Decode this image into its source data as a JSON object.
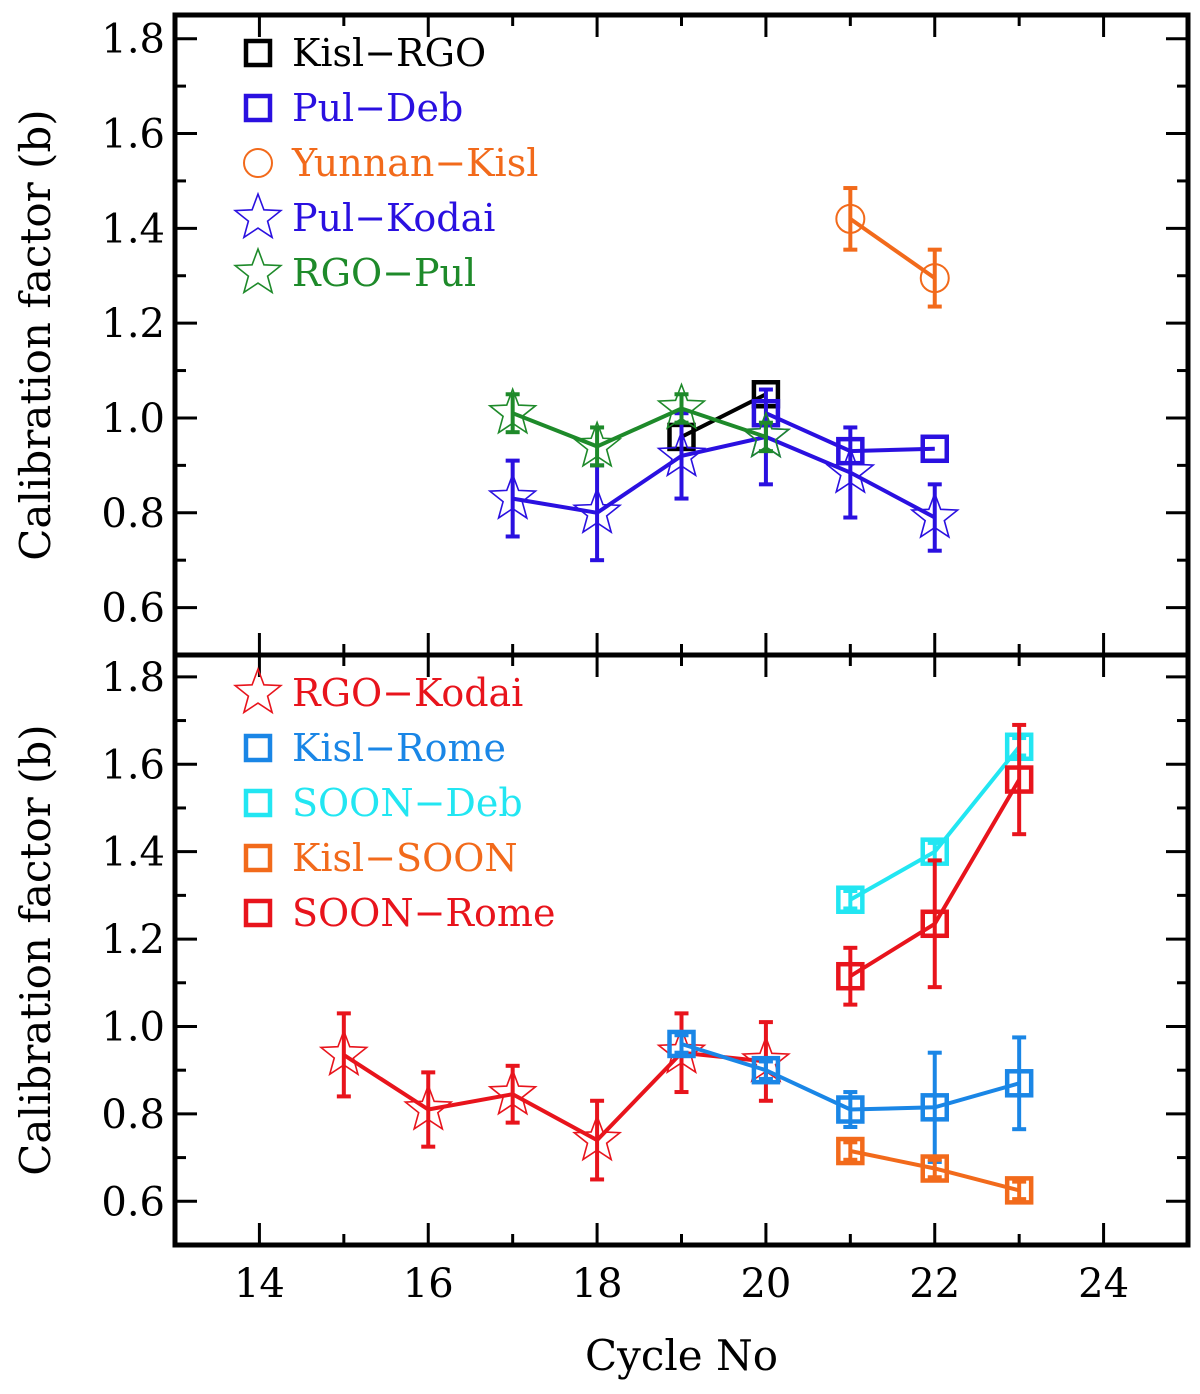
{
  "chart_data": [
    {
      "type": "scatter",
      "panel": "top",
      "ylabel": "Calibration factor (b)",
      "xlabel": "",
      "xlim": [
        13,
        25
      ],
      "ylim": [
        0.5,
        1.85
      ],
      "x_ticks": [
        14,
        16,
        18,
        20,
        22,
        24
      ],
      "y_ticks": [
        0.6,
        0.8,
        1.0,
        1.2,
        1.4,
        1.6,
        1.8
      ],
      "y_tick_labels": [
        "0.6",
        "0.8",
        "1.0",
        "1.2",
        "1.4",
        "1.6",
        "1.8"
      ],
      "legend_position": "top-left",
      "series": [
        {
          "name": "Kisl−RGO",
          "color": "#000000",
          "marker": "square",
          "x": [
            19,
            20
          ],
          "y": [
            0.96,
            1.05
          ],
          "yerr": [
            0.0,
            0.0
          ]
        },
        {
          "name": "Pul−Deb",
          "color": "#2a10e0",
          "marker": "square",
          "x": [
            20,
            21,
            22
          ],
          "y": [
            1.01,
            0.93,
            0.935
          ],
          "yerr": [
            0.0,
            0.0,
            0.0
          ]
        },
        {
          "name": "Yunnan−Kisl",
          "color": "#f26a1b",
          "marker": "circle",
          "x": [
            21,
            22
          ],
          "y": [
            1.42,
            1.295
          ],
          "yerr": [
            0.065,
            0.06
          ]
        },
        {
          "name": "Pul−Kodai",
          "color": "#2a10e0",
          "marker": "star",
          "x": [
            17,
            18,
            19,
            20,
            21,
            22
          ],
          "y": [
            0.83,
            0.8,
            0.92,
            0.96,
            0.885,
            0.79
          ],
          "yerr": [
            0.08,
            0.1,
            0.09,
            0.1,
            0.095,
            0.07
          ]
        },
        {
          "name": "RGO−Pul",
          "color": "#1e8a2a",
          "marker": "star",
          "x": [
            17,
            18,
            19,
            20
          ],
          "y": [
            1.01,
            0.94,
            1.02,
            0.96
          ],
          "yerr": [
            0.04,
            0.04,
            0.03,
            0.03
          ]
        }
      ]
    },
    {
      "type": "scatter",
      "panel": "bottom",
      "ylabel": "Calibration factor (b)",
      "xlabel": "Cycle No",
      "xlim": [
        13,
        25
      ],
      "ylim": [
        0.5,
        1.85
      ],
      "x_ticks": [
        14,
        16,
        18,
        20,
        22,
        24
      ],
      "x_tick_labels": [
        "14",
        "16",
        "18",
        "20",
        "22",
        "24"
      ],
      "y_ticks": [
        0.6,
        0.8,
        1.0,
        1.2,
        1.4,
        1.6,
        1.8
      ],
      "y_tick_labels": [
        "0.6",
        "0.8",
        "1.0",
        "1.2",
        "1.4",
        "1.6",
        "1.8"
      ],
      "legend_position": "top-left",
      "series": [
        {
          "name": "RGO−Kodai",
          "color": "#e8141c",
          "marker": "star",
          "x": [
            15,
            16,
            17,
            18,
            19,
            20
          ],
          "y": [
            0.935,
            0.81,
            0.845,
            0.74,
            0.94,
            0.92
          ],
          "yerr": [
            0.095,
            0.085,
            0.065,
            0.09,
            0.09,
            0.09
          ]
        },
        {
          "name": "Kisl−Rome",
          "color": "#1a86e6",
          "marker": "square",
          "x": [
            19,
            20,
            21,
            22,
            23
          ],
          "y": [
            0.96,
            0.9,
            0.81,
            0.815,
            0.87
          ],
          "yerr": [
            0.02,
            0.02,
            0.04,
            0.125,
            0.105
          ]
        },
        {
          "name": "SOON−Deb",
          "color": "#22e6f2",
          "marker": "square",
          "x": [
            21,
            22,
            23
          ],
          "y": [
            1.29,
            1.4,
            1.64
          ],
          "yerr": [
            0.02,
            0.02,
            0.02
          ]
        },
        {
          "name": "Kisl−SOON",
          "color": "#f26a1b",
          "marker": "square",
          "x": [
            21,
            22,
            23
          ],
          "y": [
            0.715,
            0.675,
            0.625
          ],
          "yerr": [
            0.02,
            0.02,
            0.02
          ]
        },
        {
          "name": "SOON−Rome",
          "color": "#e8141c",
          "marker": "square",
          "x": [
            21,
            22,
            23
          ],
          "y": [
            1.115,
            1.235,
            1.565
          ],
          "yerr": [
            0.065,
            0.145,
            0.125
          ]
        }
      ]
    }
  ]
}
